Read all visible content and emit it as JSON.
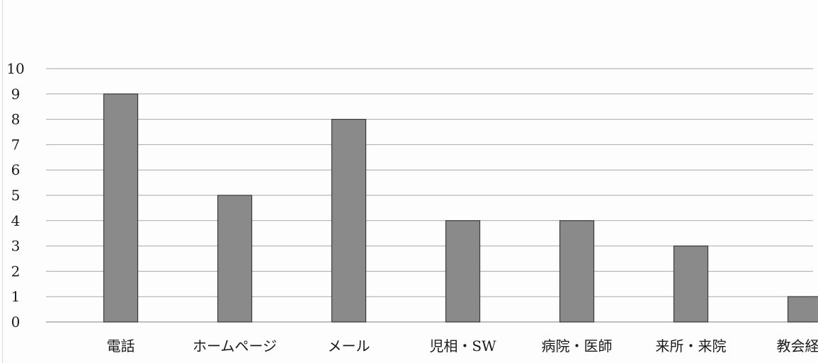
{
  "chart_data": {
    "type": "bar",
    "title": "",
    "xlabel": "",
    "ylabel": "",
    "categories": [
      "電話",
      "ホームページ",
      "メール",
      "児相・SW",
      "病院・医師",
      "来所・来院",
      "教会経由"
    ],
    "values": [
      9,
      5,
      8,
      4,
      4,
      3,
      1
    ],
    "ylim": [
      0,
      10
    ],
    "yticks": [
      "0",
      "1",
      "2",
      "3",
      "4",
      "5",
      "6",
      "7",
      "8",
      "9",
      "10"
    ],
    "grid": true,
    "legend": "none",
    "colors": {
      "bar_fill": "#8a8a8a",
      "bar_stroke": "#3a3a3a",
      "grid": "#a8a8a8",
      "text": "#1a1a1a"
    }
  }
}
